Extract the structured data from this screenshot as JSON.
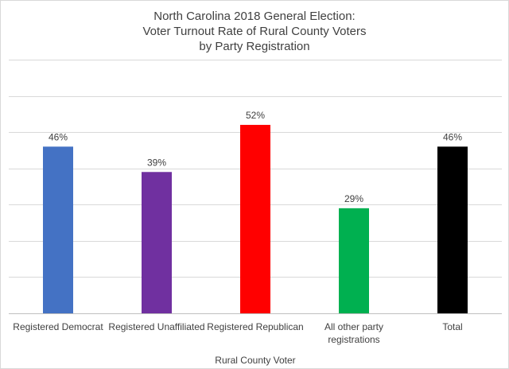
{
  "chart_data": {
    "type": "bar",
    "title_lines": [
      "North Carolina 2018 General Election:",
      "Voter Turnout Rate of Rural County Voters",
      "by Party Registration"
    ],
    "categories": [
      [
        "Registered Democrat"
      ],
      [
        "Registered Unaffiliated"
      ],
      [
        "Registered Republican"
      ],
      [
        "All other party",
        "registrations"
      ],
      [
        "Total"
      ]
    ],
    "values": [
      46,
      39,
      52,
      29,
      46
    ],
    "value_labels": [
      "46%",
      "39%",
      "52%",
      "29%",
      "46%"
    ],
    "colors": [
      "#4472c4",
      "#7030a0",
      "#ff0000",
      "#00b050",
      "#000000"
    ],
    "xlabel": "Rural County Voter",
    "ylabel": "",
    "ylim": [
      0,
      70
    ],
    "ytick_step": 10,
    "grid": true
  }
}
